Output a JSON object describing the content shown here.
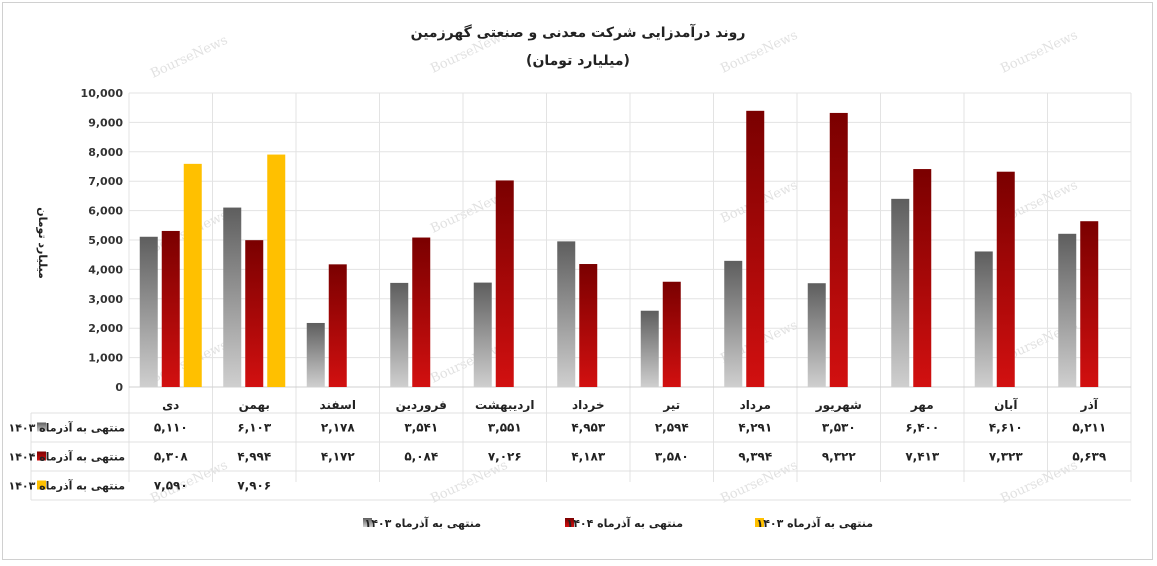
{
  "chart_data": {
    "type": "bar",
    "title": "روند درآمدزایی شرکت معدنی و صنعتی گهرزمین",
    "subtitle": "(میلیارد تومان)",
    "ylabel": "میلیارد تومان",
    "ylim": [
      0,
      10000
    ],
    "yticks": [
      "10,000",
      "9,000",
      "8,000",
      "7,000",
      "6,000",
      "5,000",
      "4,000",
      "3,000",
      "2,000",
      "1,000",
      "0"
    ],
    "ytick_values": [
      10000,
      9000,
      8000,
      7000,
      6000,
      5000,
      4000,
      3000,
      2000,
      1000,
      0
    ],
    "categories": [
      "دی",
      "بهمن",
      "اسفند",
      "فروردین",
      "اردیبهشت",
      "خرداد",
      "تیر",
      "مرداد",
      "شهریور",
      "مهر",
      "آبان",
      "آذر"
    ],
    "series": [
      {
        "name": "منتهی به آذرماه ۱۴۰۳",
        "color": "#808080",
        "values": [
          5110,
          6103,
          2178,
          3541,
          3551,
          4953,
          2594,
          4291,
          3530,
          6400,
          4610,
          5211
        ],
        "labels": [
          "۵,۱۱۰",
          "۶,۱۰۳",
          "۲,۱۷۸",
          "۳,۵۴۱",
          "۳,۵۵۱",
          "۴,۹۵۳",
          "۲,۵۹۴",
          "۴,۲۹۱",
          "۳,۵۳۰",
          "۶,۴۰۰",
          "۴,۶۱۰",
          "۵,۲۱۱"
        ]
      },
      {
        "name": "منتهی به آذرماه ۱۴۰۴",
        "color": "#a00000",
        "values": [
          5308,
          4994,
          4172,
          5084,
          7026,
          4183,
          3580,
          9394,
          9322,
          7413,
          7323,
          5639
        ],
        "labels": [
          "۵,۳۰۸",
          "۴,۹۹۴",
          "۴,۱۷۲",
          "۵,۰۸۴",
          "۷,۰۲۶",
          "۴,۱۸۳",
          "۳,۵۸۰",
          "۹,۳۹۴",
          "۹,۳۲۲",
          "۷,۴۱۳",
          "۷,۳۲۳",
          "۵,۶۳۹"
        ]
      },
      {
        "name": "منتهی به آذرماه ۱۴۰۳",
        "color": "#ffc000",
        "values": [
          7590,
          7906,
          null,
          null,
          null,
          null,
          null,
          null,
          null,
          null,
          null,
          null
        ],
        "labels": [
          "۷,۵۹۰",
          "۷,۹۰۶",
          "",
          "",
          "",
          "",
          "",
          "",
          "",
          "",
          "",
          ""
        ]
      }
    ],
    "grid": true,
    "legend": "bottom",
    "data_table": true,
    "watermark": "BourseNews"
  }
}
